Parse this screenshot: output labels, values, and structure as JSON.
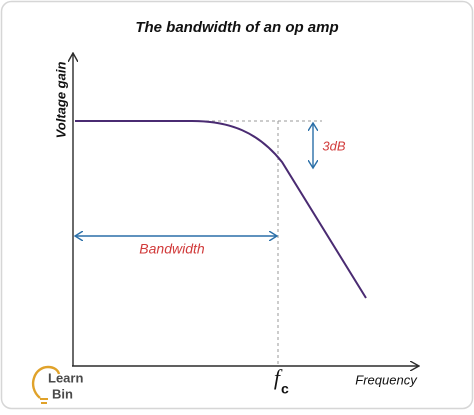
{
  "title": "The bandwidth of an op amp",
  "axes": {
    "y_label": "Voltage gain",
    "x_label": "Frequency"
  },
  "annotations": {
    "gain_drop": "3dB",
    "bandwidth": "Bandwidth",
    "cutoff": {
      "symbol": "f",
      "subscript": "c"
    }
  },
  "logo": {
    "line1": "Learn",
    "line2": "Bin"
  }
}
